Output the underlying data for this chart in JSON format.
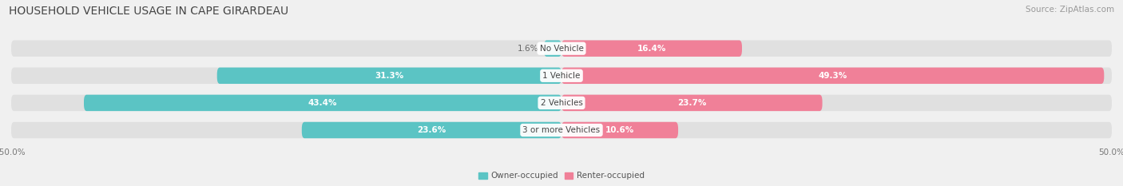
{
  "title": "HOUSEHOLD VEHICLE USAGE IN CAPE GIRARDEAU",
  "source": "Source: ZipAtlas.com",
  "categories": [
    "No Vehicle",
    "1 Vehicle",
    "2 Vehicles",
    "3 or more Vehicles"
  ],
  "owner_values": [
    1.6,
    31.3,
    43.4,
    23.6
  ],
  "renter_values": [
    16.4,
    49.3,
    23.7,
    10.6
  ],
  "owner_color": "#5BC4C4",
  "renter_color": "#F08098",
  "owner_label": "Owner-occupied",
  "renter_label": "Renter-occupied",
  "bg_color": "#f0f0f0",
  "bar_bg_color": "#e0e0e0",
  "title_fontsize": 10,
  "source_fontsize": 7.5,
  "value_fontsize": 7.5,
  "category_fontsize": 7.5,
  "axis_fontsize": 7.5,
  "bar_height": 0.6,
  "bar_spacing": 1.0,
  "xlim_max": 50
}
